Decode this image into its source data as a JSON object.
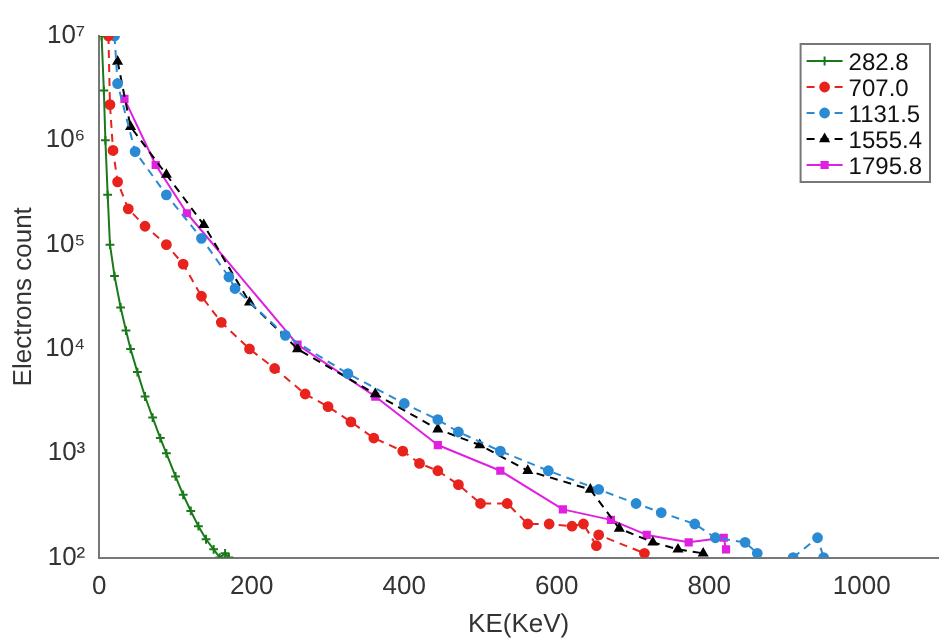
{
  "chart_data": {
    "type": "line",
    "xlabel": "KE(KeV)",
    "ylabel": "Electrons count",
    "log": "y",
    "grid": false,
    "legend": "top right",
    "xlim": [
      0,
      1100
    ],
    "xticks": [
      0,
      200,
      400,
      600,
      800,
      1000
    ],
    "ylim": [
      100,
      10000000
    ],
    "yticks": [
      {
        "value": 100,
        "label": "10²"
      },
      {
        "value": 1000,
        "label": "10³"
      },
      {
        "value": 10000,
        "label": "10⁴"
      },
      {
        "value": 100000,
        "label": "10⁵"
      },
      {
        "value": 1000000,
        "label": "10⁶"
      },
      {
        "value": 10000000,
        "label": "10⁷"
      }
    ],
    "series": [
      {
        "name": "282.8",
        "color": "#1a7a1a",
        "marker": "cross",
        "line_style": "solid",
        "x": [
          3,
          6,
          8,
          11,
          14,
          20,
          28,
          35,
          41,
          50,
          60,
          70,
          80,
          88,
          100,
          110,
          120,
          130,
          140,
          150,
          158,
          165,
          170
        ],
        "values": [
          10000000,
          3000000,
          1000000,
          300000,
          100000,
          50000,
          25000,
          15000,
          10000,
          6000,
          3500,
          2200,
          1400,
          1000,
          600,
          400,
          280,
          200,
          150,
          120,
          100,
          110,
          100
        ]
      },
      {
        "name": "707.0",
        "color": "#e8231e",
        "marker": "circle",
        "line_style": "dashed",
        "x": [
          12,
          14,
          18,
          24,
          38,
          60,
          88,
          110,
          134,
          160,
          197,
          230,
          270,
          300,
          330,
          360,
          398,
          420,
          444,
          471,
          500,
          535,
          562,
          590,
          620,
          635,
          652,
          655,
          715
        ],
        "values": [
          10000000,
          2200000,
          800000,
          400000,
          220000,
          150000,
          100000,
          65000,
          32000,
          18000,
          10000,
          6500,
          3700,
          2800,
          2000,
          1400,
          1050,
          800,
          680,
          500,
          330,
          330,
          210,
          210,
          200,
          210,
          130,
          165,
          110
        ]
      },
      {
        "name": "1131.5",
        "color": "#2a8ad4",
        "marker": "circle",
        "line_style": "dashed",
        "x": [
          20,
          24,
          47,
          88,
          134,
          170,
          178,
          244,
          326,
          400,
          444,
          471,
          526,
          589,
          655,
          704,
          737,
          781,
          808,
          847,
          863,
          875,
          910,
          942,
          950
        ],
        "values": [
          10000000,
          3500000,
          780000,
          300000,
          115000,
          49000,
          38000,
          13500,
          5800,
          3000,
          2100,
          1600,
          1050,
          680,
          450,
          330,
          270,
          210,
          155,
          140,
          110,
          null,
          100,
          155,
          100
        ]
      },
      {
        "name": "1555.4",
        "color": "#000000",
        "marker": "triangle",
        "line_style": "dashed",
        "x": [
          24,
          41,
          88,
          137,
          197,
          260,
          362,
          444,
          499,
          562,
          644,
          682,
          726,
          759,
          792
        ],
        "values": [
          5700000,
          1350000,
          470000,
          155000,
          28000,
          10000,
          3700,
          1700,
          1200,
          680,
          450,
          190,
          140,
          120,
          110
        ]
      },
      {
        "name": "1795.8",
        "color": "#e020e0",
        "marker": "square",
        "line_style": "solid",
        "x": [
          33,
          74,
          115,
          260,
          362,
          444,
          526,
          608,
          671,
          718,
          773,
          819,
          822
        ],
        "values": [
          2500000,
          580000,
          200000,
          11000,
          3500,
          1200,
          680,
          290,
          230,
          165,
          140,
          155,
          120
        ]
      }
    ]
  }
}
